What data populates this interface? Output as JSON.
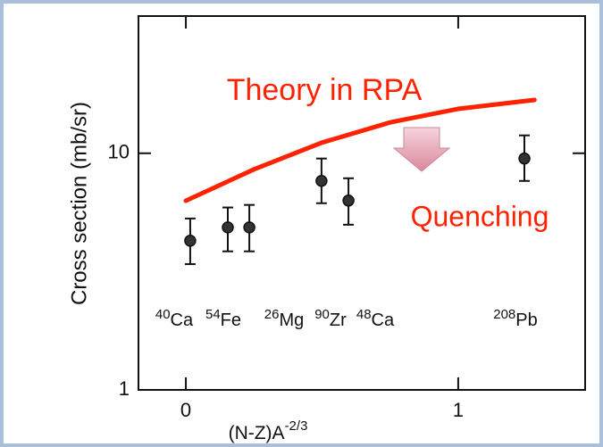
{
  "chart_data": {
    "type": "scatter",
    "ylabel": "Cross section (mb/sr)",
    "xlabel": "(N-Z)A",
    "xlabel_exponent": "-2/3",
    "log_y": true,
    "xlim": [
      -0.174,
      1.466
    ],
    "ylim": [
      1,
      38
    ],
    "xticks": [
      0,
      1
    ],
    "yticks": [
      1,
      10
    ],
    "points": {
      "color": "#333333",
      "x": [
        0.016,
        0.154,
        0.233,
        0.498,
        0.597,
        1.243
      ],
      "values": [
        4.27,
        4.86,
        4.86,
        7.64,
        6.31,
        9.5
      ],
      "lower": [
        3.4,
        3.85,
        3.85,
        6.15,
        4.99,
        7.64
      ],
      "upper": [
        5.3,
        5.9,
        6.05,
        9.5,
        7.84,
        11.9
      ],
      "mass": [
        "40",
        "54",
        "26",
        "90",
        "48",
        "208"
      ],
      "element": [
        "Ca",
        "Fe",
        "Mg",
        "Zr",
        "Ca",
        "Pb"
      ]
    },
    "theory": {
      "name": "Theory in RPA",
      "color": "#ff2200",
      "x": [
        0,
        0.25,
        0.5,
        0.75,
        1.0,
        1.28
      ],
      "values": [
        6.3,
        8.55,
        11.1,
        13.5,
        15.4,
        16.8
      ]
    },
    "annotation": "Quenching"
  }
}
